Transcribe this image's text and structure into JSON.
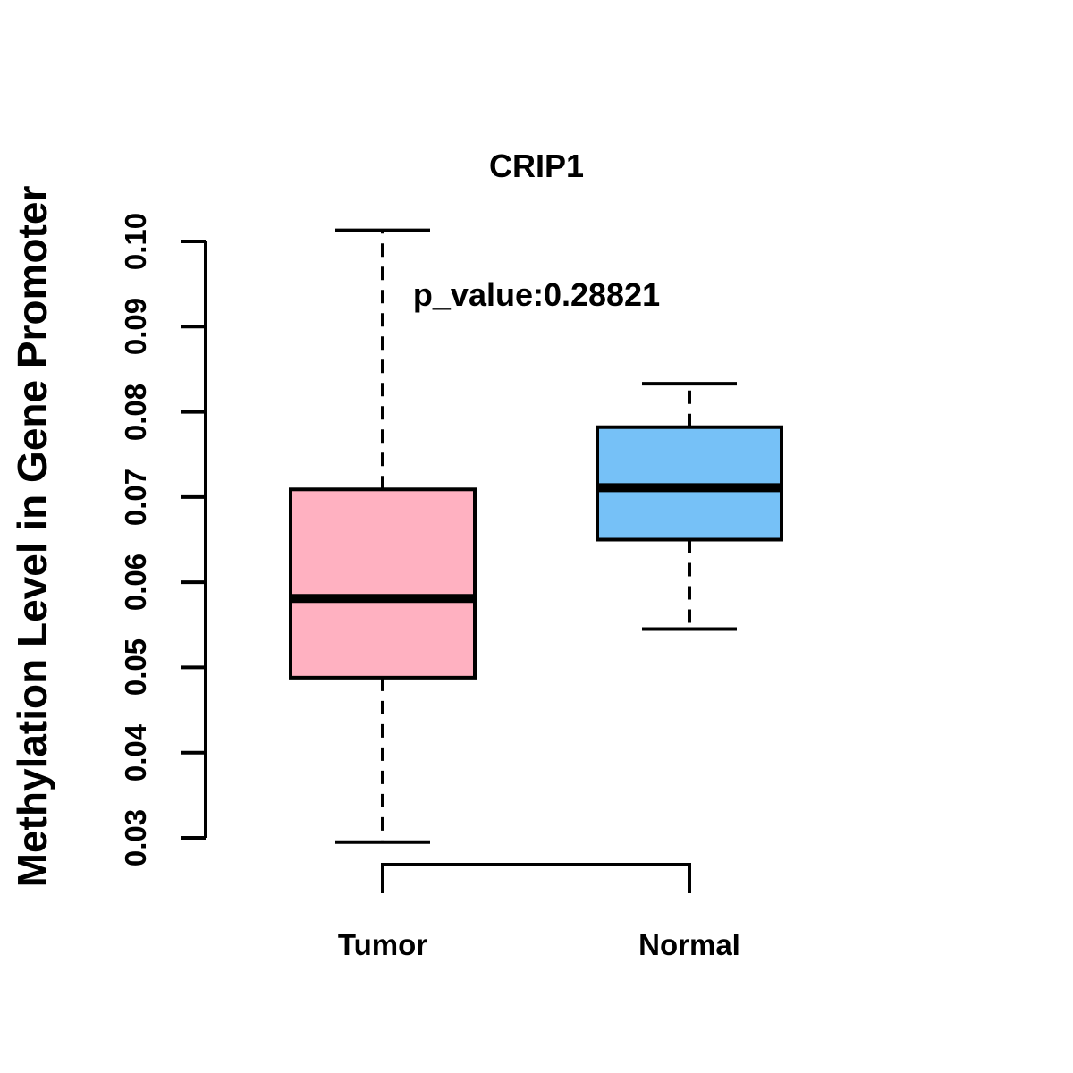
{
  "chart_data": {
    "type": "boxplot",
    "title": "CRIP1",
    "subtitle": "p_value:0.28821",
    "ylabel": "Methylation Level in Gene Promoter",
    "xlabel": "",
    "ylim": [
      0.03,
      0.1
    ],
    "y_ticks": [
      "0.03",
      "0.04",
      "0.05",
      "0.06",
      "0.07",
      "0.08",
      "0.09",
      "0.10"
    ],
    "grid": false,
    "legend": "none",
    "line_color": "#000000",
    "background_color": "#FFFFFF",
    "groups": [
      {
        "label": "Tumor",
        "fill_color": "#FFB1C1",
        "stats": {
          "whisker_low": 0.0295,
          "q1": 0.0488,
          "median": 0.0581,
          "q3": 0.0709,
          "whisker_high": 0.1013
        }
      },
      {
        "label": "Normal",
        "fill_color": "#76C1F7",
        "stats": {
          "whisker_low": 0.0545,
          "q1": 0.065,
          "median": 0.0711,
          "q3": 0.0782,
          "whisker_high": 0.0833
        }
      }
    ]
  }
}
